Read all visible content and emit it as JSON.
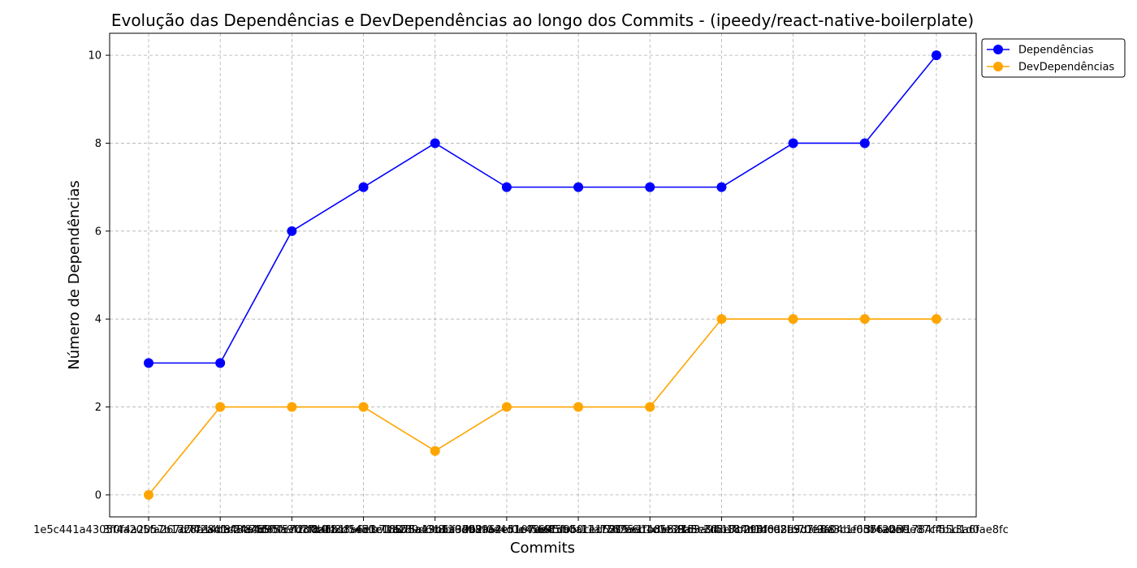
{
  "chart_data": {
    "type": "line",
    "title": "Evolução das Dependências e DevDependências ao longo dos Commits - (ipeedy/react-native-boilerplate)",
    "xlabel": "Commits",
    "ylabel": "Número de Dependências",
    "categories": [
      "1e5c441a4305f4a205fa267d742a4f8f5f8c6",
      "3f0f4a2057b1a2f7e8d1c24a4d65a9f2d0b18",
      "7c8e14da48c755ff0c7d8fb4f1d8a6e3c0fb2",
      "a4d95f5c07f8a6b1f54d1e18875a19b6a3d09",
      "c0b3d1e5fb71a189d6c8bf92d8a62c5107dd8",
      "5d8a43b110d939a4ef0e4569f5b0a1e1f76",
      "9b2f0e4d1e40e45fb5f11a75395a1b8e8d15",
      "e61d9b0c1d5315e1f4d5b27d3a94b18f0c8",
      "2f7a6b1c0e39a5e3fb18c4d1d0a3fb70e3f8",
      "8a3c1d5e7b294f6d8e3c1f9a04be6d7c2b5e",
      "f14c02b9d7a8e3c1f05b6a2d9e87c4b13a6f",
      "3f4a0ef1784ff55d1d0ae8fc"
    ],
    "series": [
      {
        "name": "Dependências",
        "color": "#0000ff",
        "values": [
          3,
          3,
          6,
          7,
          8,
          7,
          7,
          7,
          7,
          8,
          8,
          10
        ]
      },
      {
        "name": "DevDependências",
        "color": "#ffa500",
        "values": [
          0,
          2,
          2,
          2,
          1,
          2,
          2,
          2,
          4,
          4,
          4,
          4
        ]
      }
    ],
    "ylim": [
      -0.5,
      10.5
    ],
    "yticks": [
      0,
      2,
      4,
      6,
      8,
      10
    ],
    "grid": true,
    "legend": "top-right, outside plot"
  }
}
